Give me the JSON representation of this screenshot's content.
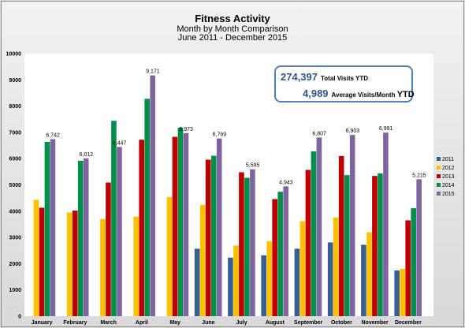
{
  "chart_data": {
    "type": "bar",
    "title": "Fitness Activity",
    "subtitle_lines": [
      "Month by Month Comparison",
      "June 2011 - December 2015"
    ],
    "categories": [
      "January",
      "February",
      "March",
      "April",
      "May",
      "June",
      "July",
      "August",
      "September",
      "October",
      "November",
      "December"
    ],
    "ylim": [
      0,
      10000
    ],
    "yticks": [
      0,
      1000,
      2000,
      3000,
      4000,
      5000,
      6000,
      7000,
      8000,
      9000,
      10000
    ],
    "grid": false,
    "legend_position": "right",
    "series": [
      {
        "name": "2011",
        "color": "#376092",
        "values": [
          null,
          null,
          null,
          null,
          null,
          2570,
          2230,
          2320,
          2570,
          2810,
          2720,
          1740
        ]
      },
      {
        "name": "2012",
        "color": "#ffc000",
        "values": [
          4430,
          3950,
          3700,
          3790,
          4540,
          4240,
          2690,
          2850,
          3620,
          3760,
          3190,
          1800
        ]
      },
      {
        "name": "2013",
        "color": "#c00000",
        "values": [
          4130,
          4020,
          5090,
          6720,
          6830,
          5960,
          5480,
          4460,
          5570,
          6100,
          5340,
          3650
        ]
      },
      {
        "name": "2014",
        "color": "#00904a",
        "values": [
          6640,
          5920,
          7440,
          8280,
          7180,
          6110,
          5270,
          4740,
          6280,
          5370,
          5440,
          4110
        ]
      },
      {
        "name": "2015",
        "color": "#8064a2",
        "values": [
          6742,
          6012,
          6447,
          9171,
          6973,
          6769,
          5595,
          4943,
          6807,
          6903,
          6991,
          5215
        ]
      }
    ],
    "data_labels": [
      "6,742",
      "6,012",
      "6,447",
      "9,171",
      "6,973",
      "6,769",
      "5,595",
      "4,943",
      "6,807",
      "6,903",
      "6,991",
      "5,215"
    ]
  },
  "summary": {
    "total_value": "274,397",
    "total_label": "Total Visits YTD",
    "average_value": "4,989",
    "average_label": "Average Visits/Month",
    "average_label_suffix": "YTD"
  }
}
